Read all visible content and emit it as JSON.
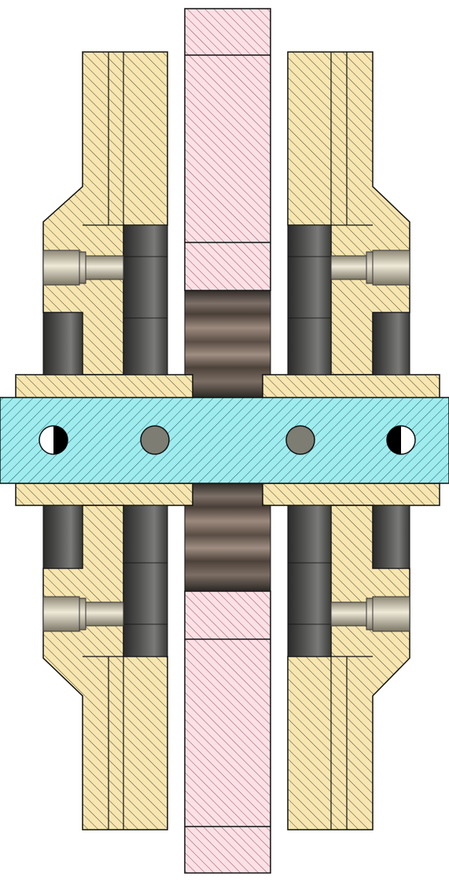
{
  "drawing": {
    "view": "section view",
    "parts": [
      {
        "id": "left-housing",
        "material": "hatched-tan"
      },
      {
        "id": "right-housing",
        "material": "hatched-tan"
      },
      {
        "id": "center-disc",
        "material": "hatched-pink"
      },
      {
        "id": "shaft",
        "material": "hatched-cyan"
      },
      {
        "id": "pins",
        "count": 4
      },
      {
        "id": "gear-hub",
        "material": "shaded-gray"
      },
      {
        "id": "bearings",
        "count": 4
      },
      {
        "id": "bolts",
        "count": 4
      }
    ],
    "colors": {
      "tan": "#f7e6b0",
      "tan_hatch": "#4a4535",
      "pink": "#fbe1e6",
      "pink_hatch": "#8c3a4a",
      "cyan": "#9fecef",
      "cyan_hatch": "#235e66",
      "outline": "#111111",
      "bearing_dark": "#2a2a2a",
      "bearing_light": "#7a7a78",
      "bolt_light": "#e8e2d0",
      "bolt_dark": "#8c8674",
      "pin_gray": "#7d7d73"
    }
  }
}
